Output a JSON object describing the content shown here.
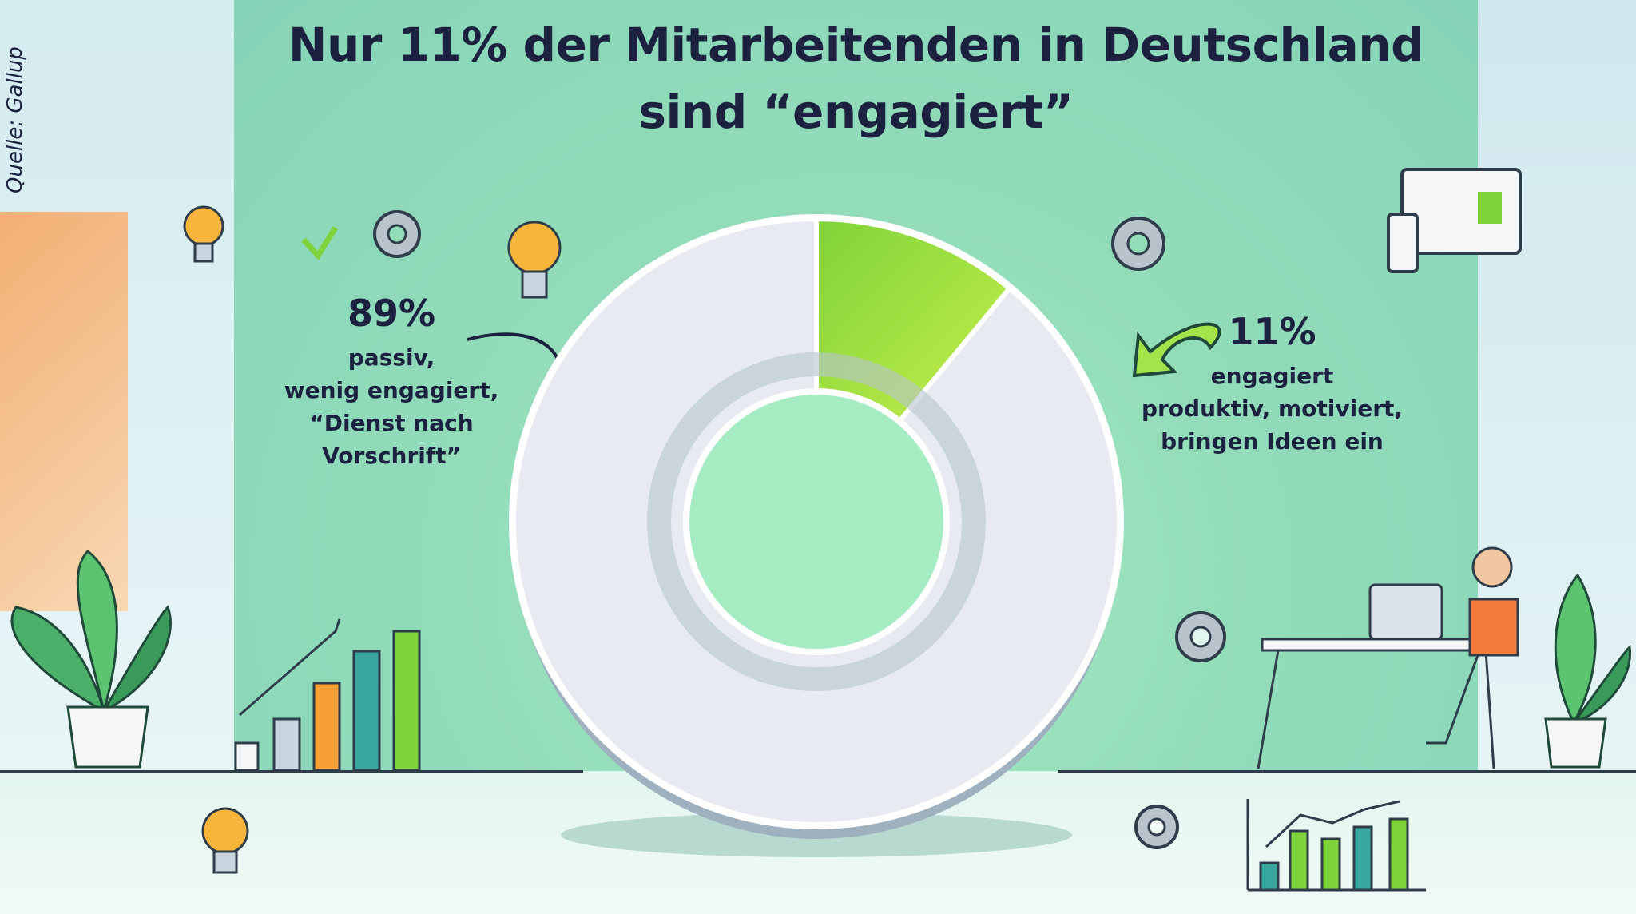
{
  "title": {
    "line1": "Nur 11% der Mitarbeitenden in Deutschland",
    "line2": "sind “engagiert”"
  },
  "source": "Quelle: Gallup",
  "left_stat": {
    "percent": "89%",
    "lines": [
      "passiv,",
      "wenig engagiert,",
      "“Dienst nach",
      "Vorschrift”"
    ]
  },
  "right_stat": {
    "percent": "11%",
    "lines": [
      "engagiert",
      "produktiv, motiviert,",
      "bringen Ideen ein"
    ]
  },
  "colors": {
    "title": "#1c2140",
    "engaged": "#7fd33a",
    "engaged_light": "#c6ef4a",
    "passive": "#e7eaf0",
    "background": "#93dcba"
  },
  "chart_data": {
    "type": "pie",
    "variant": "donut",
    "title": "Nur 11% der Mitarbeitenden in Deutschland sind “engagiert”",
    "slices": [
      {
        "label": "engagiert",
        "value": 11,
        "color": "#7fd33a"
      },
      {
        "label": "passiv, wenig engagiert",
        "value": 89,
        "color": "#e7eaf0"
      }
    ]
  }
}
